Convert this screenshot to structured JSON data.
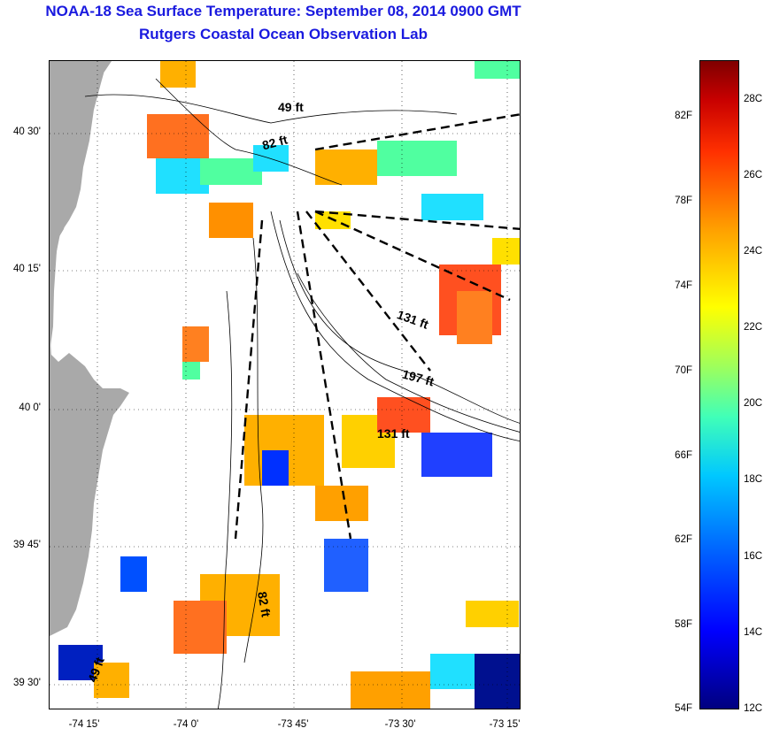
{
  "header": {
    "title": "NOAA-18 Sea Surface Temperature:  September 08, 2014 0900 GMT",
    "subtitle": "Rutgers Coastal Ocean Observation Lab"
  },
  "axes": {
    "lat_labels": [
      "40 30'",
      "40 15'",
      "40 0'",
      "39 45'",
      "39 30'"
    ],
    "lon_labels": [
      "-74 15'",
      "-74 0'",
      "-73 45'",
      "-73 30'",
      "-73 15'"
    ]
  },
  "depth_labels": [
    "49 ft",
    "82 ft",
    "131 ft",
    "197 ft",
    "131 ft",
    "82 ft",
    "49 ft"
  ],
  "colorbar": {
    "fahrenheit_labels": [
      "82F",
      "78F",
      "74F",
      "70F",
      "66F",
      "62F",
      "58F",
      "54F"
    ],
    "celsius_labels": [
      "28C",
      "26C",
      "24C",
      "22C",
      "20C",
      "18C",
      "16C",
      "14C",
      "12C"
    ]
  },
  "colors": {
    "title": "#1a1adf",
    "land": "#a9a9a9",
    "cloud": "#ffffff"
  },
  "icons": [
    "map-area-icon",
    "colorbar-gradient-icon"
  ]
}
